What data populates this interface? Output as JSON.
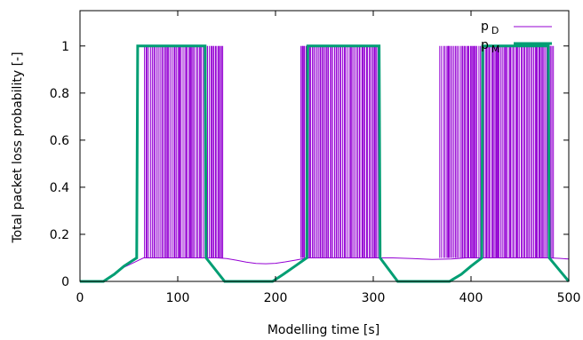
{
  "chart_data": {
    "type": "line",
    "xlabel": "Modelling time [s]",
    "ylabel": "Total packet loss probability [-]",
    "xlim": [
      0,
      500
    ],
    "ylim": [
      0,
      1.15
    ],
    "xticks": [
      0,
      100,
      200,
      300,
      400,
      500
    ],
    "yticks": [
      0,
      0.2,
      0.4,
      0.6,
      0.8,
      1
    ],
    "ytick_labels": [
      "0",
      "0.2",
      "0.4",
      "0.6",
      "0.8",
      "1"
    ],
    "grid": false,
    "legend_position": "top-right",
    "colors": {
      "pD": "#9400d3",
      "pM": "#009e73"
    },
    "series": [
      {
        "id": "pD",
        "legend_main": "p",
        "legend_sub": "D",
        "style": "thin",
        "baseline_points": [
          [
            0,
            0
          ],
          [
            25,
            0
          ],
          [
            35,
            0.03
          ],
          [
            45,
            0.06
          ],
          [
            55,
            0.08
          ],
          [
            65,
            0.1
          ],
          [
            70,
            0.1
          ],
          [
            130,
            0.1
          ],
          [
            140,
            0.1
          ],
          [
            150,
            0.097
          ],
          [
            160,
            0.09
          ],
          [
            170,
            0.082
          ],
          [
            180,
            0.076
          ],
          [
            190,
            0.075
          ],
          [
            200,
            0.077
          ],
          [
            210,
            0.083
          ],
          [
            220,
            0.09
          ],
          [
            228,
            0.096
          ],
          [
            235,
            0.1
          ],
          [
            305,
            0.1
          ],
          [
            320,
            0.1
          ],
          [
            340,
            0.097
          ],
          [
            360,
            0.093
          ],
          [
            380,
            0.095
          ],
          [
            395,
            0.1
          ],
          [
            480,
            0.1
          ],
          [
            490,
            0.098
          ],
          [
            500,
            0.095
          ]
        ],
        "burst_ranges": [
          [
            66,
            147
          ],
          [
            226,
            306
          ],
          [
            368,
            485
          ]
        ],
        "burst_low": 0.1,
        "burst_high": 1
      },
      {
        "id": "pM",
        "legend_main": "p",
        "legend_sub": "M",
        "style": "thick",
        "points": [
          [
            0,
            0
          ],
          [
            24,
            0
          ],
          [
            35,
            0.03
          ],
          [
            45,
            0.065
          ],
          [
            58,
            0.1
          ],
          [
            59,
            1
          ],
          [
            128,
            1
          ],
          [
            129,
            0.1
          ],
          [
            148,
            0
          ],
          [
            197,
            0
          ],
          [
            208,
            0.03
          ],
          [
            220,
            0.065
          ],
          [
            232,
            0.1
          ],
          [
            233,
            1
          ],
          [
            306,
            1
          ],
          [
            307,
            0.1
          ],
          [
            325,
            0
          ],
          [
            378,
            0
          ],
          [
            390,
            0.03
          ],
          [
            400,
            0.065
          ],
          [
            411,
            0.1
          ],
          [
            412,
            1
          ],
          [
            479,
            1
          ],
          [
            480,
            0.1
          ],
          [
            500,
            0
          ]
        ]
      }
    ]
  }
}
